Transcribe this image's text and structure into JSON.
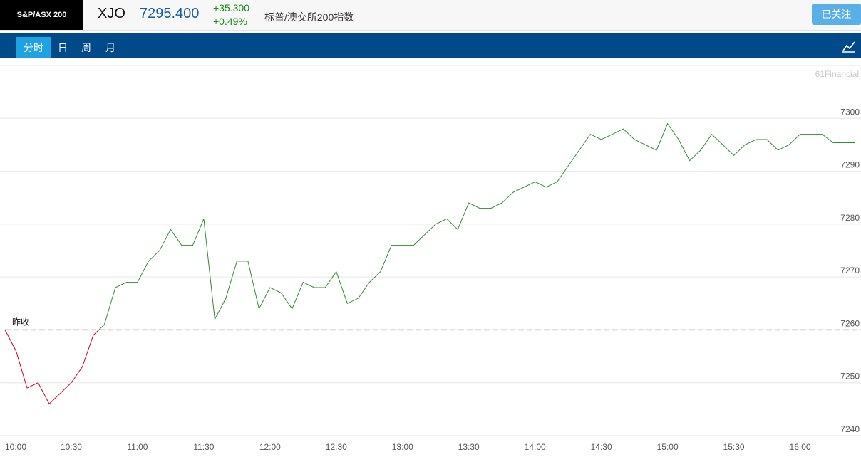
{
  "header": {
    "badge": "S&P/ASX 200",
    "symbol": "XJO",
    "price": "7295.400",
    "change": "+35.300",
    "change_pct": "+0.49%",
    "name": "标普/澳交所200指数",
    "follow": "已关注"
  },
  "tabs": [
    "分时",
    "日",
    "周",
    "月"
  ],
  "chart_data": {
    "type": "line",
    "watermark": "61Financial",
    "reference": {
      "label": "昨收",
      "value": 7260
    },
    "colors": {
      "above": "#2e8b2e",
      "below": "#d0021b"
    },
    "x": [
      "10:00",
      "10:05",
      "10:10",
      "10:15",
      "10:20",
      "10:25",
      "10:30",
      "10:35",
      "10:40",
      "10:45",
      "10:50",
      "10:55",
      "11:00",
      "11:05",
      "11:10",
      "11:15",
      "11:20",
      "11:25",
      "11:30",
      "11:35",
      "11:40",
      "11:45",
      "11:50",
      "11:55",
      "12:00",
      "12:05",
      "12:10",
      "12:15",
      "12:20",
      "12:25",
      "12:30",
      "12:35",
      "12:40",
      "12:45",
      "12:50",
      "12:55",
      "13:00",
      "13:05",
      "13:10",
      "13:15",
      "13:20",
      "13:25",
      "13:30",
      "13:35",
      "13:40",
      "13:45",
      "13:50",
      "13:55",
      "14:00",
      "14:05",
      "14:10",
      "14:15",
      "14:20",
      "14:25",
      "14:30",
      "14:35",
      "14:40",
      "14:45",
      "14:50",
      "14:55",
      "15:00",
      "15:05",
      "15:10",
      "15:15",
      "15:20",
      "15:25",
      "15:30",
      "15:35",
      "15:40",
      "15:45",
      "15:50",
      "15:55",
      "16:00",
      "16:05",
      "16:10",
      "16:15",
      "16:20",
      "16:25"
    ],
    "series": [
      {
        "values": [
          7260,
          7256,
          7249,
          7250,
          7246,
          7248,
          7250,
          7253,
          7259,
          7261,
          7268,
          7269,
          7269,
          7273,
          7275,
          7279,
          7276,
          7276,
          7281,
          7262,
          7266,
          7273,
          7273,
          7264,
          7268,
          7267,
          7264,
          7269,
          7268,
          7268,
          7271,
          7265,
          7266,
          7269,
          7271,
          7276,
          7276,
          7276,
          7278,
          7280,
          7281,
          7279,
          7284,
          7283,
          7283,
          7284,
          7286,
          7287,
          7288,
          7287,
          7288,
          7291,
          7294,
          7297,
          7296,
          7297,
          7298,
          7296,
          7295,
          7294,
          7299,
          7296,
          7292,
          7294,
          7297,
          7295,
          7293,
          7295,
          7296,
          7296,
          7294,
          7295,
          7297,
          7297,
          7297,
          7295.4,
          7295.4,
          7295.4
        ]
      }
    ],
    "xlim": [
      "10:00",
      "16:25"
    ],
    "xticks": [
      "10:00",
      "10:30",
      "11:00",
      "11:30",
      "12:00",
      "12:30",
      "13:00",
      "13:30",
      "14:00",
      "14:30",
      "15:00",
      "15:30",
      "16:00"
    ],
    "ylim": [
      7240,
      7310
    ],
    "yticks": [
      7240,
      7250,
      7260,
      7270,
      7280,
      7290,
      7300
    ],
    "grid": true
  }
}
